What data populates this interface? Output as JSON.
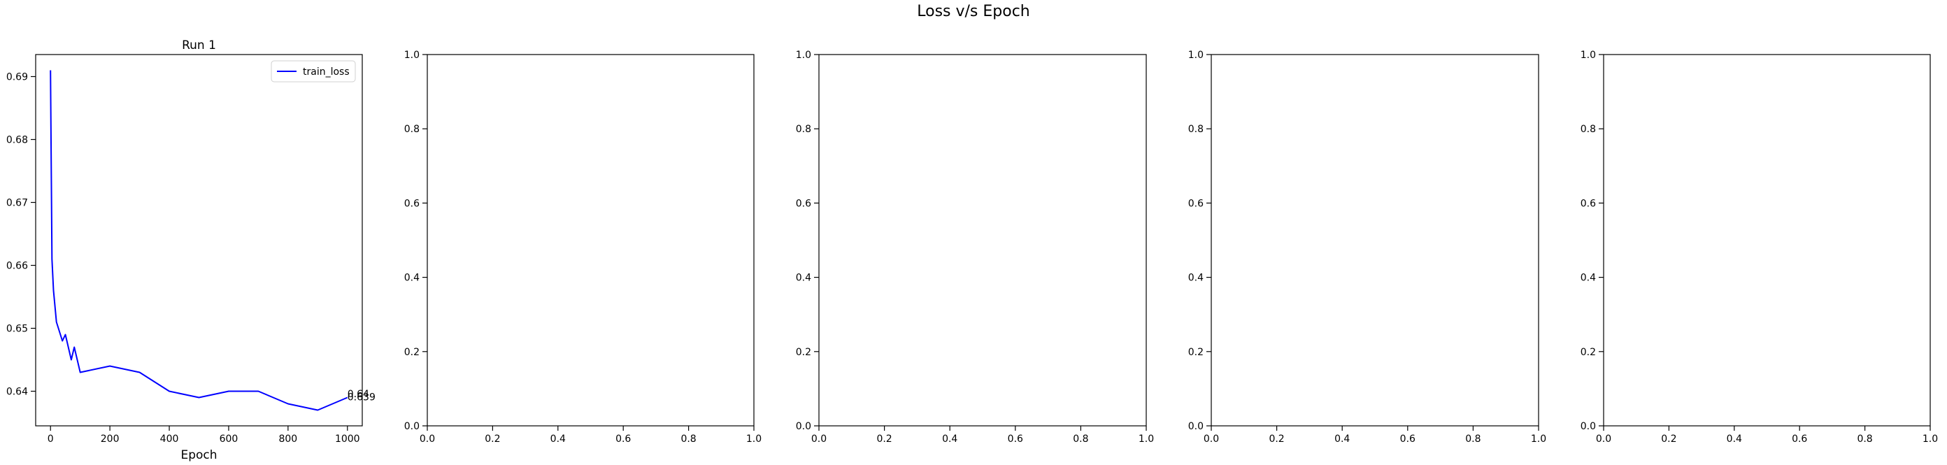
{
  "figure": {
    "suptitle": "Loss v/s Epoch"
  },
  "chart_data": [
    {
      "type": "line",
      "title": "Run 1",
      "xlabel": "Epoch",
      "ylabel": "",
      "xlim": [
        -50,
        1050
      ],
      "ylim": [
        0.6345,
        0.6935
      ],
      "xticks": [
        0,
        200,
        400,
        600,
        800,
        1000
      ],
      "xtick_labels": [
        "0",
        "200",
        "400",
        "600",
        "800",
        "1000"
      ],
      "yticks": [
        0.64,
        0.65,
        0.66,
        0.67,
        0.68,
        0.69
      ],
      "ytick_labels": [
        "0.64",
        "0.65",
        "0.66",
        "0.67",
        "0.68",
        "0.69"
      ],
      "grid": false,
      "legend": "upper right",
      "series": [
        {
          "name": "train_loss",
          "color": "#0000ff",
          "x": [
            0,
            5,
            10,
            20,
            40,
            50,
            70,
            80,
            100,
            200,
            300,
            400,
            500,
            600,
            700,
            800,
            900,
            1000
          ],
          "y": [
            0.691,
            0.661,
            0.656,
            0.651,
            0.648,
            0.649,
            0.645,
            0.647,
            0.643,
            0.644,
            0.643,
            0.64,
            0.639,
            0.64,
            0.64,
            0.638,
            0.637,
            0.639
          ]
        }
      ],
      "annotations": [
        {
          "text": "0.64",
          "x": 1000,
          "y": 0.6395
        },
        {
          "text": "0.639",
          "x": 1000,
          "y": 0.639
        }
      ]
    },
    {
      "type": "line",
      "title": "",
      "xlabel": "",
      "ylabel": "",
      "xlim": [
        0,
        1
      ],
      "ylim": [
        0,
        1
      ],
      "xticks": [
        0,
        0.2,
        0.4,
        0.6,
        0.8,
        1.0
      ],
      "xtick_labels": [
        "0.0",
        "0.2",
        "0.4",
        "0.6",
        "0.8",
        "1.0"
      ],
      "yticks": [
        0,
        0.2,
        0.4,
        0.6,
        0.8,
        1.0
      ],
      "ytick_labels": [
        "0.0",
        "0.2",
        "0.4",
        "0.6",
        "0.8",
        "1.0"
      ],
      "grid": false,
      "series": []
    },
    {
      "type": "line",
      "title": "",
      "xlabel": "",
      "ylabel": "",
      "xlim": [
        0,
        1
      ],
      "ylim": [
        0,
        1
      ],
      "xticks": [
        0,
        0.2,
        0.4,
        0.6,
        0.8,
        1.0
      ],
      "xtick_labels": [
        "0.0",
        "0.2",
        "0.4",
        "0.6",
        "0.8",
        "1.0"
      ],
      "yticks": [
        0,
        0.2,
        0.4,
        0.6,
        0.8,
        1.0
      ],
      "ytick_labels": [
        "0.0",
        "0.2",
        "0.4",
        "0.6",
        "0.8",
        "1.0"
      ],
      "grid": false,
      "series": []
    },
    {
      "type": "line",
      "title": "",
      "xlabel": "",
      "ylabel": "",
      "xlim": [
        0,
        1
      ],
      "ylim": [
        0,
        1
      ],
      "xticks": [
        0,
        0.2,
        0.4,
        0.6,
        0.8,
        1.0
      ],
      "xtick_labels": [
        "0.0",
        "0.2",
        "0.4",
        "0.6",
        "0.8",
        "1.0"
      ],
      "yticks": [
        0,
        0.2,
        0.4,
        0.6,
        0.8,
        1.0
      ],
      "ytick_labels": [
        "0.0",
        "0.2",
        "0.4",
        "0.6",
        "0.8",
        "1.0"
      ],
      "grid": false,
      "series": []
    },
    {
      "type": "line",
      "title": "",
      "xlabel": "",
      "ylabel": "",
      "xlim": [
        0,
        1
      ],
      "ylim": [
        0,
        1
      ],
      "xticks": [
        0,
        0.2,
        0.4,
        0.6,
        0.8,
        1.0
      ],
      "xtick_labels": [
        "0.0",
        "0.2",
        "0.4",
        "0.6",
        "0.8",
        "1.0"
      ],
      "yticks": [
        0,
        0.2,
        0.4,
        0.6,
        0.8,
        1.0
      ],
      "ytick_labels": [
        "0.0",
        "0.2",
        "0.4",
        "0.6",
        "0.8",
        "1.0"
      ],
      "grid": false,
      "series": []
    }
  ]
}
